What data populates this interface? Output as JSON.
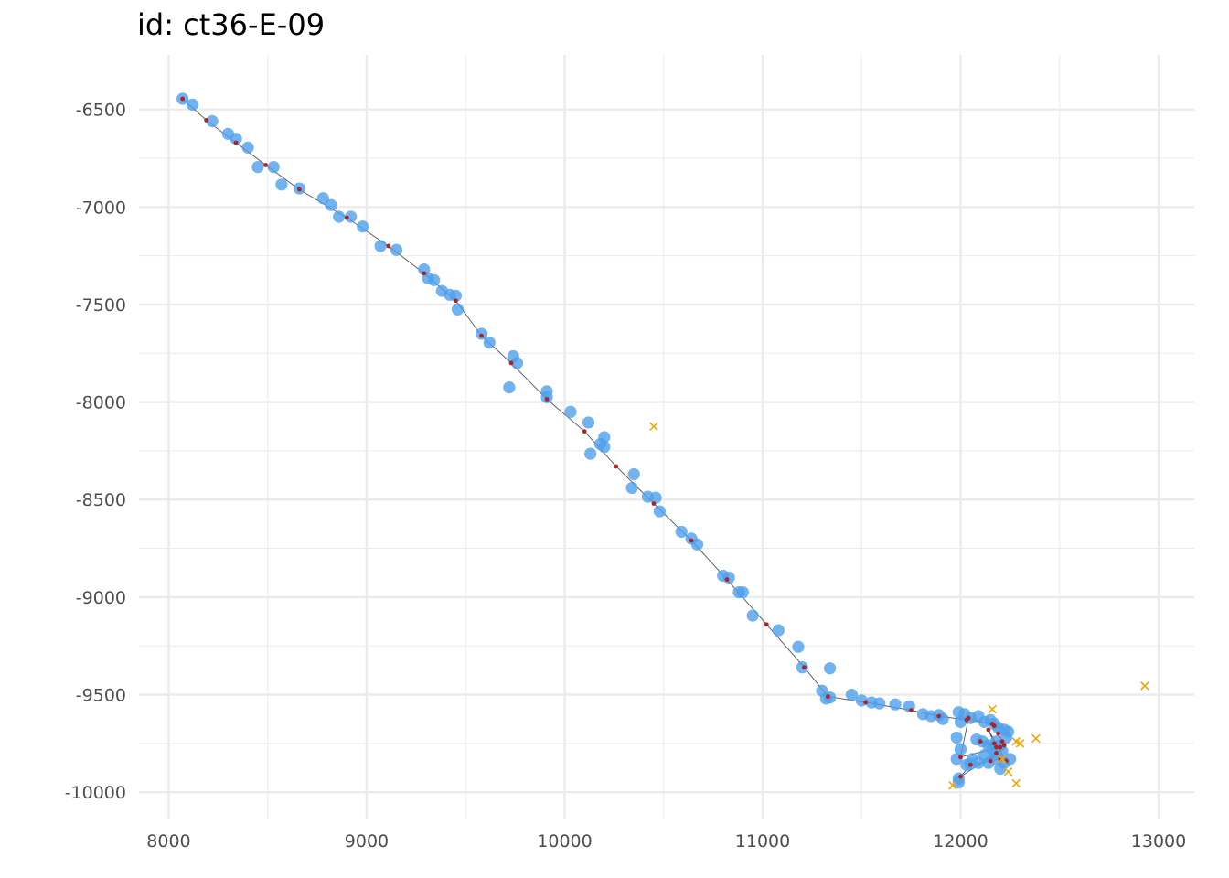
{
  "chart_data": {
    "type": "scatter",
    "title": "id: ct36-E-09",
    "xlabel": "",
    "ylabel": "",
    "xlim": [
      7850,
      13180
    ],
    "ylim": [
      -10140,
      -6220
    ],
    "grid": true,
    "legend": "none",
    "x_ticks": [
      8000,
      9000,
      10000,
      11000,
      12000,
      13000
    ],
    "y_ticks": [
      -6500,
      -7000,
      -7500,
      -8000,
      -8500,
      -9000,
      -9500,
      -10000
    ],
    "colors": {
      "observed": "#4d9fec",
      "track_line": "#555555",
      "fitted": "#b22222",
      "outlier": "#f5a500",
      "grid": "#ebebeb"
    },
    "observed_points": [
      [
        8070,
        -6445
      ],
      [
        8120,
        -6475
      ],
      [
        8220,
        -6560
      ],
      [
        8300,
        -6625
      ],
      [
        8340,
        -6650
      ],
      [
        8400,
        -6695
      ],
      [
        8450,
        -6795
      ],
      [
        8530,
        -6795
      ],
      [
        8570,
        -6885
      ],
      [
        8660,
        -6905
      ],
      [
        8780,
        -6955
      ],
      [
        8820,
        -6990
      ],
      [
        8860,
        -7050
      ],
      [
        8920,
        -7050
      ],
      [
        8980,
        -7100
      ],
      [
        9070,
        -7200
      ],
      [
        9150,
        -7220
      ],
      [
        9290,
        -7320
      ],
      [
        9310,
        -7365
      ],
      [
        9340,
        -7375
      ],
      [
        9380,
        -7430
      ],
      [
        9420,
        -7450
      ],
      [
        9450,
        -7455
      ],
      [
        9460,
        -7525
      ],
      [
        9580,
        -7650
      ],
      [
        9620,
        -7695
      ],
      [
        9740,
        -7765
      ],
      [
        9760,
        -7800
      ],
      [
        9720,
        -7925
      ],
      [
        9910,
        -7945
      ],
      [
        9910,
        -7975
      ],
      [
        10030,
        -8050
      ],
      [
        10120,
        -8105
      ],
      [
        10200,
        -8180
      ],
      [
        10180,
        -8215
      ],
      [
        10200,
        -8230
      ],
      [
        10130,
        -8265
      ],
      [
        10350,
        -8370
      ],
      [
        10340,
        -8440
      ],
      [
        10420,
        -8485
      ],
      [
        10460,
        -8490
      ],
      [
        10480,
        -8560
      ],
      [
        10590,
        -8665
      ],
      [
        10640,
        -8700
      ],
      [
        10670,
        -8730
      ],
      [
        10800,
        -8890
      ],
      [
        10830,
        -8900
      ],
      [
        10880,
        -8975
      ],
      [
        10900,
        -8975
      ],
      [
        10950,
        -9095
      ],
      [
        11080,
        -9170
      ],
      [
        11180,
        -9255
      ],
      [
        11200,
        -9360
      ],
      [
        11340,
        -9365
      ],
      [
        11300,
        -9480
      ],
      [
        11320,
        -9520
      ],
      [
        11340,
        -9515
      ],
      [
        11450,
        -9500
      ],
      [
        11500,
        -9530
      ],
      [
        11550,
        -9540
      ],
      [
        11590,
        -9545
      ],
      [
        11670,
        -9550
      ],
      [
        11740,
        -9560
      ],
      [
        11810,
        -9600
      ],
      [
        11850,
        -9610
      ],
      [
        11890,
        -9605
      ],
      [
        11910,
        -9625
      ],
      [
        11990,
        -9590
      ],
      [
        12000,
        -9640
      ],
      [
        12020,
        -9600
      ],
      [
        12050,
        -9620
      ],
      [
        12090,
        -9610
      ],
      [
        12120,
        -9640
      ],
      [
        12150,
        -9630
      ],
      [
        12170,
        -9650
      ],
      [
        12190,
        -9670
      ],
      [
        12220,
        -9680
      ],
      [
        12240,
        -9690
      ],
      [
        11980,
        -9720
      ],
      [
        12080,
        -9730
      ],
      [
        12110,
        -9740
      ],
      [
        12140,
        -9760
      ],
      [
        12160,
        -9780
      ],
      [
        12180,
        -9740
      ],
      [
        12200,
        -9760
      ],
      [
        12230,
        -9720
      ],
      [
        12000,
        -9780
      ],
      [
        11980,
        -9830
      ],
      [
        12060,
        -9830
      ],
      [
        12090,
        -9850
      ],
      [
        12140,
        -9850
      ],
      [
        12200,
        -9880
      ],
      [
        12220,
        -9850
      ],
      [
        12250,
        -9830
      ],
      [
        12030,
        -9860
      ],
      [
        11990,
        -9930
      ],
      [
        11990,
        -9950
      ],
      [
        12050,
        -9855
      ],
      [
        12120,
        -9810
      ],
      [
        12170,
        -9800
      ],
      [
        12210,
        -9790
      ],
      [
        12180,
        -9830
      ]
    ],
    "fitted_track": [
      [
        8070,
        -6445
      ],
      [
        8190,
        -6555
      ],
      [
        8340,
        -6670
      ],
      [
        8490,
        -6785
      ],
      [
        8660,
        -6910
      ],
      [
        8900,
        -7055
      ],
      [
        9110,
        -7200
      ],
      [
        9290,
        -7340
      ],
      [
        9450,
        -7480
      ],
      [
        9580,
        -7660
      ],
      [
        9730,
        -7800
      ],
      [
        9910,
        -7985
      ],
      [
        10100,
        -8150
      ],
      [
        10260,
        -8330
      ],
      [
        10450,
        -8520
      ],
      [
        10640,
        -8710
      ],
      [
        10820,
        -8910
      ],
      [
        11020,
        -9140
      ],
      [
        11210,
        -9360
      ],
      [
        11330,
        -9510
      ],
      [
        11520,
        -9540
      ],
      [
        11750,
        -9580
      ],
      [
        11890,
        -9610
      ],
      [
        12030,
        -9630
      ],
      [
        12160,
        -9650
      ],
      [
        12190,
        -9700
      ],
      [
        12220,
        -9760
      ],
      [
        12100,
        -9740
      ],
      [
        12180,
        -9770
      ],
      [
        12210,
        -9740
      ],
      [
        12150,
        -9840
      ],
      [
        12180,
        -9800
      ],
      [
        12000,
        -9920
      ],
      [
        12050,
        -9860
      ],
      [
        12200,
        -9830
      ],
      [
        12230,
        -9840
      ],
      [
        12140,
        -9680
      ],
      [
        12170,
        -9750
      ],
      [
        12200,
        -9770
      ],
      [
        12000,
        -9820
      ],
      [
        12040,
        -9620
      ],
      [
        12170,
        -9660
      ]
    ],
    "outlier_points": [
      [
        10450,
        -8125
      ],
      [
        12930,
        -9455
      ],
      [
        12160,
        -9575
      ],
      [
        12280,
        -9740
      ],
      [
        12300,
        -9750
      ],
      [
        12380,
        -9725
      ],
      [
        12240,
        -9895
      ],
      [
        12280,
        -9955
      ],
      [
        11960,
        -9965
      ],
      [
        12210,
        -9830
      ]
    ]
  }
}
